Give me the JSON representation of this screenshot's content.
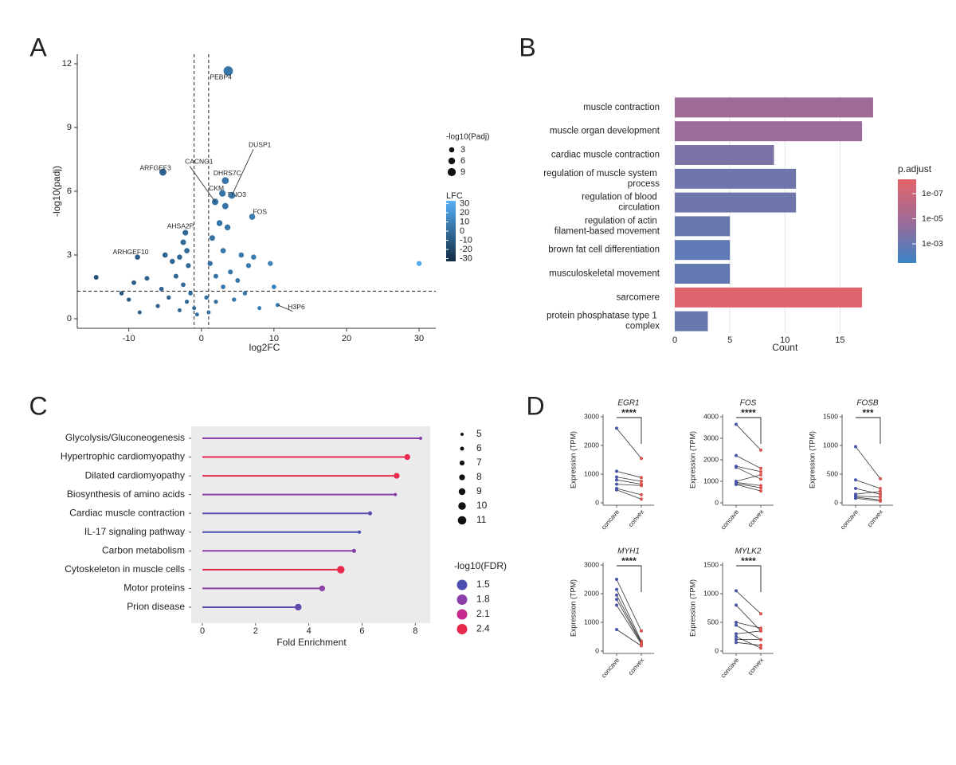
{
  "panel_labels": [
    "A",
    "B",
    "C",
    "D"
  ],
  "chart_data": [
    {
      "type": "scatter",
      "x_label": "log2FC",
      "y_label": "-log10(padj)",
      "xlim": [
        -17.1,
        32.3
      ],
      "xticks": [
        -10,
        0,
        10,
        20,
        30
      ],
      "ylim": [
        -0.45,
        12.45
      ],
      "yticks": [
        0,
        3,
        6,
        9,
        12
      ],
      "vlines": [
        -1,
        1
      ],
      "hlines": [
        1.3
      ],
      "x": [
        3.7,
        -5.3,
        1.9,
        3.3,
        2.9,
        3.3,
        4.2,
        7.0,
        -2.2,
        -8.8,
        10.5,
        -14.5,
        30,
        9.5,
        7.2,
        10,
        -9.3,
        -11,
        -10,
        -7.5,
        -5,
        -4,
        -3,
        -2,
        -1.8,
        -3.5,
        -2.5,
        -1.5,
        -2,
        -1,
        -0.6,
        -3,
        -4.5,
        -6,
        -5.5,
        1.5,
        2.5,
        3.6,
        1.2,
        2,
        3,
        4,
        5,
        6,
        4.5,
        2,
        1,
        0.7,
        5.5,
        8,
        -8.5,
        3,
        -2.5,
        6.5
      ],
      "y": [
        11.66,
        6.9,
        5.5,
        6.5,
        5.9,
        5.3,
        5.8,
        4.8,
        4.05,
        2.9,
        0.65,
        1.95,
        2.6,
        2.6,
        2.9,
        1.5,
        1.7,
        1.2,
        0.9,
        1.9,
        3.0,
        2.7,
        2.9,
        3.2,
        2.5,
        2.0,
        1.6,
        1.2,
        0.8,
        0.5,
        0.2,
        0.4,
        1.0,
        0.6,
        1.4,
        3.8,
        4.5,
        4.3,
        2.6,
        2.0,
        1.5,
        2.2,
        1.8,
        1.2,
        0.9,
        0.8,
        0.3,
        1.0,
        3.0,
        0.5,
        0.3,
        3.2,
        3.6,
        2.5
      ],
      "labels": [
        "PEBP4",
        "ARFGEF3",
        "CACNG1",
        "DHRS7C",
        "CKM",
        "ENO3",
        "DUSP1",
        "FOS",
        "AHSA2P",
        "ARHGEF10",
        "H3P6",
        null,
        null,
        null,
        null,
        null,
        null,
        null,
        null,
        null,
        null,
        null,
        null,
        null,
        null,
        null,
        null,
        null,
        null,
        null,
        null,
        null,
        null,
        null,
        null,
        null,
        null,
        null,
        null,
        null,
        null,
        null,
        null,
        null,
        null,
        null,
        null,
        null,
        null,
        null,
        null,
        null,
        null,
        null
      ],
      "size_legend": {
        "title": "-log10(Padj)",
        "values": [
          3,
          6,
          9
        ]
      },
      "color_legend": {
        "title": "LFC",
        "lim": [
          -33,
          33
        ],
        "ticks": [
          30,
          20,
          10,
          0,
          -10,
          -20,
          -30
        ],
        "colors": [
          "#132b43",
          "#56b1f7"
        ]
      }
    },
    {
      "type": "hbar",
      "x_label": "Count",
      "categories": [
        "muscle contraction",
        "muscle organ development",
        "cardiac muscle contraction",
        "regulation of muscle system process",
        "regulation of blood circulation",
        "regulation of actin filament-based movement",
        "brown fat cell differentiation",
        "musculoskeletal movement",
        "sarcomere",
        "protein phosphatase type 1 complex"
      ],
      "values": [
        18,
        17,
        9,
        11,
        11,
        5,
        5,
        5,
        17,
        3
      ],
      "padj": [
        1.6e-05,
        2e-05,
        0.0002,
        0.0006,
        0.0006,
        0.001,
        0.002,
        0.0015,
        1e-08,
        0.001
      ],
      "xlim": [
        -0.87,
        18.8
      ],
      "xticks": [
        0,
        5,
        10,
        15
      ],
      "grid": true,
      "color_legend": {
        "title": "p.adjust",
        "lim": [
          7.2e-09,
          0.033
        ],
        "colors": [
          "#e3646b",
          "#9e6b97",
          "#3b82c4"
        ],
        "ticks": [
          {
            "value": 1e-07,
            "label": "1e-07"
          },
          {
            "value": 1e-05,
            "label": "1e-05"
          },
          {
            "value": 0.001,
            "label": "1e-03"
          }
        ]
      }
    },
    {
      "type": "lollipop",
      "x_label": "Fold Enrichment",
      "categories": [
        "Glycolysis/Gluconeogenesis",
        "Hypertrophic cardiomyopathy",
        "Dilated cardiomyopathy",
        "Biosynthesis of amino acids",
        "Cardiac muscle contraction",
        "IL-17 signaling pathway",
        "Carbon metabolism",
        "Cytoskeleton in muscle cells",
        "Motor proteins",
        "Prion disease"
      ],
      "values": [
        8.2,
        7.7,
        7.3,
        7.25,
        6.3,
        5.9,
        5.7,
        5.2,
        4.5,
        3.6
      ],
      "size": [
        5,
        8,
        8,
        5,
        6,
        5,
        6,
        10,
        8,
        9
      ],
      "fdr": [
        1.8,
        2.4,
        2.4,
        1.8,
        1.6,
        1.5,
        1.8,
        2.4,
        1.8,
        1.6
      ],
      "xlim": [
        -0.42,
        8.56
      ],
      "xticks": [
        0,
        2,
        4,
        6,
        8
      ],
      "size_legend": {
        "values": [
          5,
          6,
          7,
          8,
          9,
          10,
          11
        ]
      },
      "color_legend": {
        "title": "-log10(FDR)",
        "values": [
          1.5,
          1.8,
          2.1,
          2.4
        ],
        "colors": [
          "#4b4fb0",
          "#8b3fa8",
          "#c42a8e",
          "#e8294d"
        ]
      }
    },
    {
      "type": "paired",
      "title": "EGR1",
      "y_label": "Expression (TPM)",
      "categories": [
        "concave",
        "convex"
      ],
      "significance": "****",
      "ylim": [
        0,
        3000
      ],
      "yticks": [
        0,
        1000,
        2000,
        3000
      ],
      "pairs": [
        [
          2600,
          1550
        ],
        [
          1100,
          880
        ],
        [
          900,
          750
        ],
        [
          800,
          650
        ],
        [
          650,
          600
        ],
        [
          500,
          280
        ],
        [
          450,
          130
        ]
      ]
    },
    {
      "type": "paired",
      "title": "FOS",
      "y_label": "Expression (TPM)",
      "categories": [
        "concave",
        "convex"
      ],
      "significance": "****",
      "ylim": [
        0,
        4000
      ],
      "yticks": [
        0,
        1000,
        2000,
        3000,
        4000
      ],
      "pairs": [
        [
          3650,
          2450
        ],
        [
          2200,
          1600
        ],
        [
          1700,
          1450
        ],
        [
          1650,
          1100
        ],
        [
          1000,
          1300
        ],
        [
          950,
          800
        ],
        [
          900,
          700
        ],
        [
          850,
          550
        ]
      ]
    },
    {
      "type": "paired",
      "title": "FOSB",
      "y_label": "Expression (TPM)",
      "categories": [
        "concave",
        "convex"
      ],
      "significance": "***",
      "ylim": [
        0,
        1500
      ],
      "yticks": [
        0,
        500,
        1000,
        1500
      ],
      "pairs": [
        [
          980,
          420
        ],
        [
          400,
          250
        ],
        [
          250,
          150
        ],
        [
          150,
          200
        ],
        [
          120,
          100
        ],
        [
          100,
          50
        ],
        [
          80,
          30
        ]
      ]
    },
    {
      "type": "paired",
      "title": "MYH1",
      "y_label": "Expression (TPM)",
      "categories": [
        "concave",
        "convex"
      ],
      "significance": "****",
      "ylim": [
        0,
        3000
      ],
      "yticks": [
        0,
        1000,
        2000,
        3000
      ],
      "pairs": [
        [
          2500,
          700
        ],
        [
          2150,
          350
        ],
        [
          1950,
          300
        ],
        [
          1800,
          280
        ],
        [
          1600,
          250
        ],
        [
          750,
          180
        ]
      ]
    },
    {
      "type": "paired",
      "title": "MYLK2",
      "y_label": "Expression (TPM)",
      "categories": [
        "concave",
        "convex"
      ],
      "significance": "****",
      "ylim": [
        0,
        1500
      ],
      "yticks": [
        0,
        500,
        1000,
        1500
      ],
      "pairs": [
        [
          1050,
          650
        ],
        [
          800,
          350
        ],
        [
          500,
          400
        ],
        [
          450,
          200
        ],
        [
          300,
          350
        ],
        [
          250,
          50
        ],
        [
          200,
          200
        ],
        [
          150,
          100
        ]
      ]
    }
  ]
}
